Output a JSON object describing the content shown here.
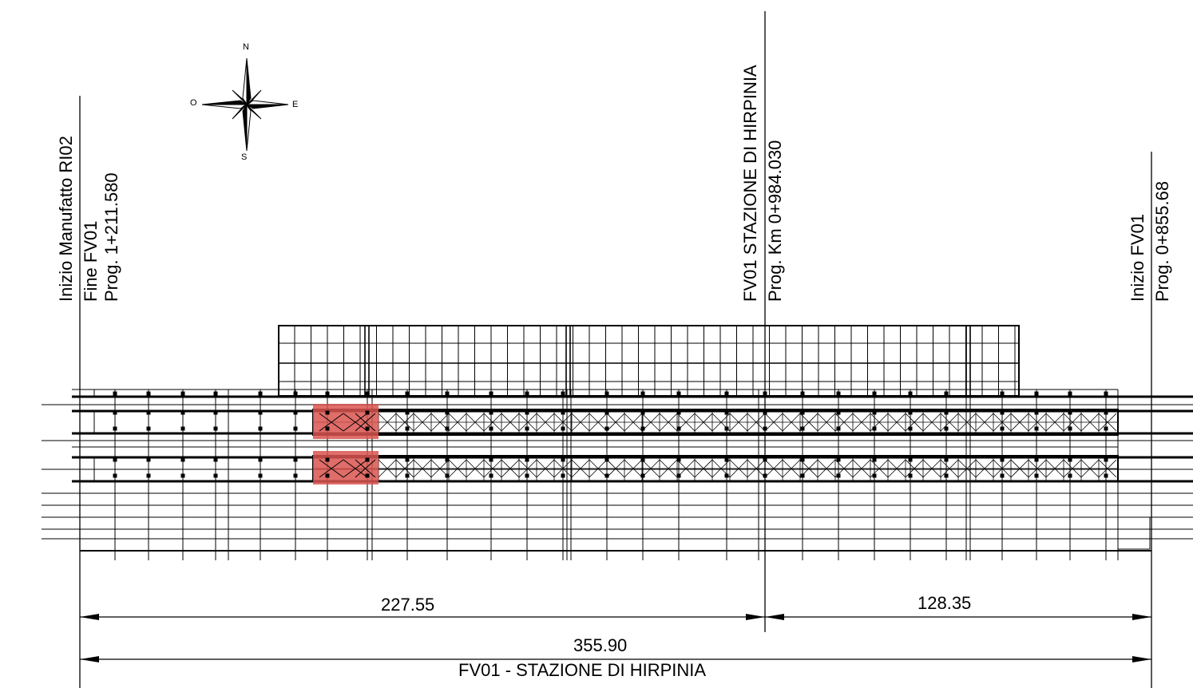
{
  "labels": {
    "left_l1": "Inizio Manufatto RI02",
    "left_l2": "Fine FV01",
    "left_l3": "Prog. 1+211.580",
    "center_l1": "FV01 STAZIONE DI HIRPINIA",
    "center_l2": "Prog. Km 0+984.030",
    "right_l1": "Inizio  FV01",
    "right_l2": "Prog. 0+855.68"
  },
  "compass": {
    "n": "N",
    "s": "S",
    "e": "E",
    "w": "O"
  },
  "dimensions": {
    "left_segment": "227.55",
    "right_segment": "128.35",
    "total": "355.90",
    "caption": "FV01 - STAZIONE DI HIRPINIA"
  },
  "colors": {
    "line": "#000000",
    "highlight": "#d9534f"
  }
}
